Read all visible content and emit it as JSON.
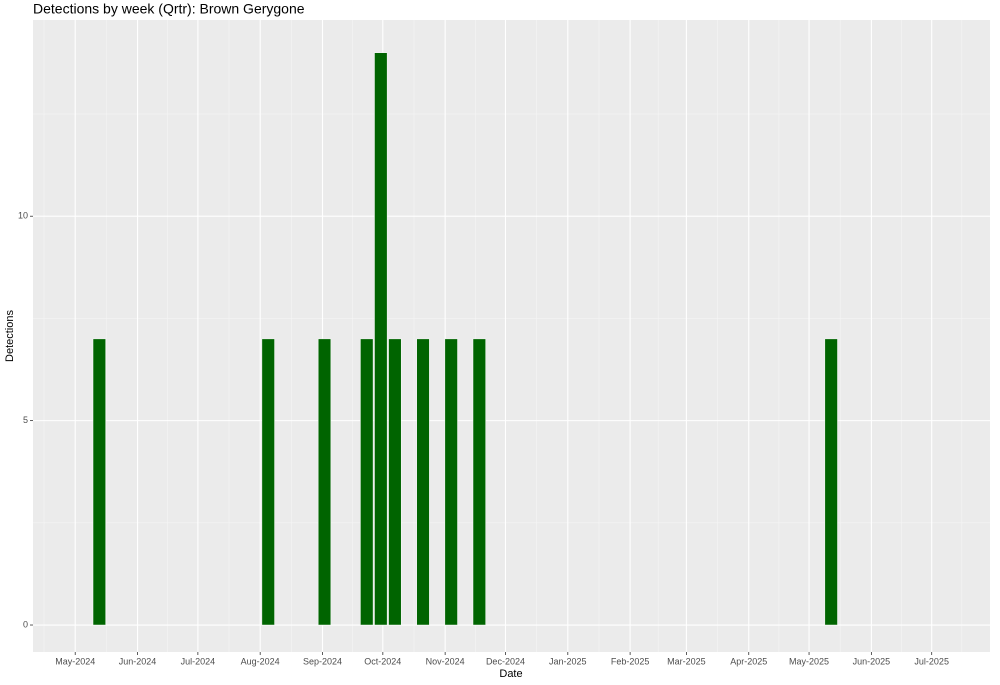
{
  "chart_data": {
    "type": "bar",
    "title": "Detections by week (Qrtr): Brown Gerygone",
    "x_label": "Date",
    "y_label": "Detections",
    "x": [
      "2024-05-13",
      "2024-08-05",
      "2024-09-02",
      "2024-09-23",
      "2024-09-30",
      "2024-10-07",
      "2024-10-21",
      "2024-11-04",
      "2024-11-18",
      "2025-05-12"
    ],
    "values": [
      7,
      7,
      7,
      7,
      14,
      7,
      7,
      7,
      7,
      7
    ],
    "color": "#006400",
    "xlim": [
      "2024-04-10",
      "2025-07-30"
    ],
    "xticks": [
      {
        "value": "2024-05-01",
        "label": "May-2024"
      },
      {
        "value": "2024-06-01",
        "label": "Jun-2024"
      },
      {
        "value": "2024-07-01",
        "label": "Jul-2024"
      },
      {
        "value": "2024-08-01",
        "label": "Aug-2024"
      },
      {
        "value": "2024-09-01",
        "label": "Sep-2024"
      },
      {
        "value": "2024-10-01",
        "label": "Oct-2024"
      },
      {
        "value": "2024-11-01",
        "label": "Nov-2024"
      },
      {
        "value": "2024-12-01",
        "label": "Dec-2024"
      },
      {
        "value": "2025-01-01",
        "label": "Jan-2025"
      },
      {
        "value": "2025-02-01",
        "label": "Feb-2025"
      },
      {
        "value": "2025-03-01",
        "label": "Mar-2025"
      },
      {
        "value": "2025-04-01",
        "label": "Apr-2025"
      },
      {
        "value": "2025-05-01",
        "label": "May-2025"
      },
      {
        "value": "2025-06-01",
        "label": "Jun-2025"
      },
      {
        "value": "2025-07-01",
        "label": "Jul-2025"
      }
    ],
    "ylim": [
      -0.66,
      14.8
    ],
    "yticks": [
      0,
      5,
      10
    ],
    "grid": true
  }
}
